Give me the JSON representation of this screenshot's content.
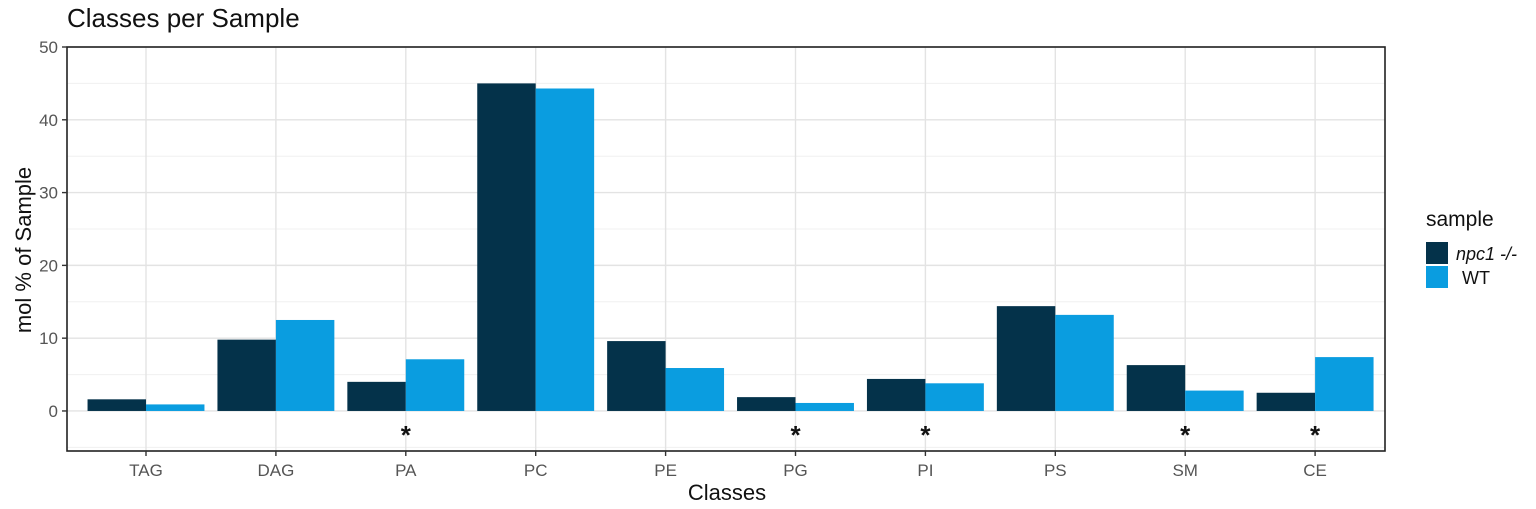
{
  "chart_data": {
    "type": "bar",
    "title": "Classes per Sample",
    "xlabel": "Classes",
    "ylabel": "mol % of Sample",
    "categories": [
      "TAG",
      "DAG",
      "PA",
      "PC",
      "PE",
      "PG",
      "PI",
      "PS",
      "SM",
      "CE"
    ],
    "series": [
      {
        "name": "npc1 -/-",
        "color": "#04324a",
        "values": [
          1.6,
          9.8,
          4.0,
          45.0,
          9.6,
          1.9,
          4.4,
          14.4,
          6.3,
          2.5
        ]
      },
      {
        "name": "WT",
        "color": "#0a9de0",
        "values": [
          0.9,
          12.5,
          7.1,
          44.3,
          5.9,
          1.1,
          3.8,
          13.2,
          2.8,
          7.4
        ]
      }
    ],
    "ylim": [
      -5.5,
      50
    ],
    "yticks": [
      0,
      10,
      20,
      30,
      40,
      50
    ],
    "significance": [
      "",
      "",
      "*",
      "",
      "",
      "*",
      "*",
      "",
      "*",
      "*"
    ],
    "legend": {
      "title": "sample",
      "position": "right"
    },
    "grid": true
  }
}
